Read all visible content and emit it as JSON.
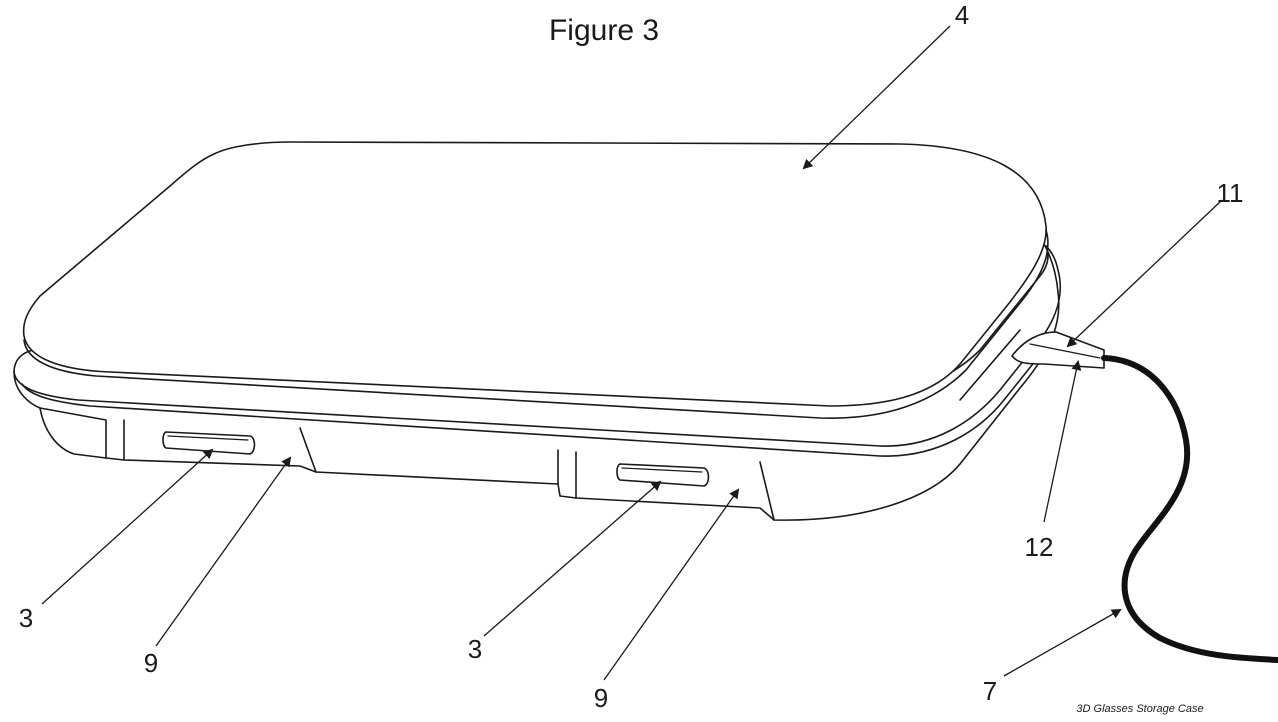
{
  "figure": {
    "title": "Figure 3",
    "caption": "3D Glasses Storage Case",
    "callouts": {
      "lid": "4",
      "connector_top": "11",
      "connector_bottom": "12",
      "cable": "7",
      "button_left": "3",
      "button_right": "3",
      "panel_left": "9",
      "panel_right": "9"
    }
  }
}
